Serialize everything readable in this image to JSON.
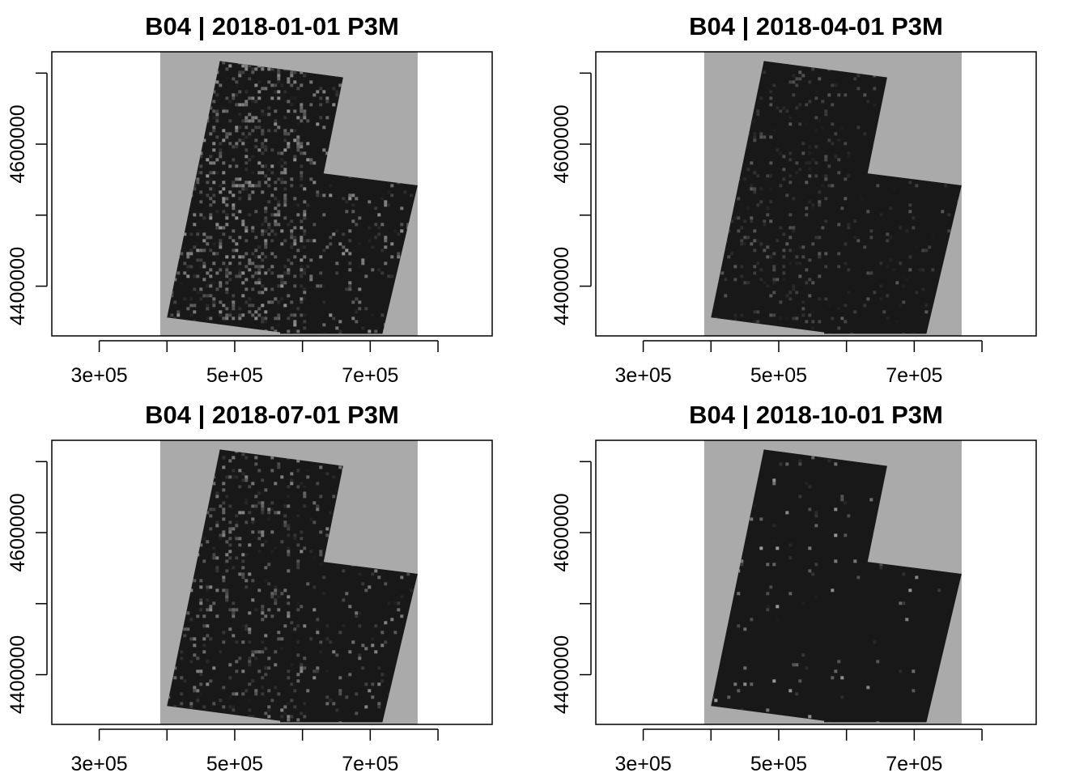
{
  "chart_data": [
    {
      "type": "heatmap",
      "title": "B04 | 2018-01-01 P3M",
      "band": "B04",
      "date": "2018-01-01",
      "period": "P3M",
      "xlim": [
        230000,
        880000
      ],
      "ylim": [
        4330000,
        4730000
      ],
      "x_ticks": [
        300000,
        400000,
        500000,
        600000,
        700000,
        800000
      ],
      "x_tick_labels": [
        "3e+05",
        "",
        "5e+05",
        "",
        "7e+05",
        ""
      ],
      "y_ticks": [
        4400000,
        4500000,
        4600000,
        4700000
      ],
      "y_tick_labels": [
        "4400000",
        "",
        "4600000",
        ""
      ],
      "cube_extent": {
        "x": [
          390000,
          770000
        ],
        "y": [
          4330000,
          4730000
        ]
      },
      "colors": {
        "nodata": "#aaaaaa",
        "low": "#181818",
        "high": "#f2f2f2"
      },
      "noise_density": 0.45,
      "noise_brightness": 0.55
    },
    {
      "type": "heatmap",
      "title": "B04 | 2018-04-01 P3M",
      "band": "B04",
      "date": "2018-04-01",
      "period": "P3M",
      "xlim": [
        230000,
        880000
      ],
      "ylim": [
        4330000,
        4730000
      ],
      "x_ticks": [
        300000,
        400000,
        500000,
        600000,
        700000,
        800000
      ],
      "x_tick_labels": [
        "3e+05",
        "",
        "5e+05",
        "",
        "7e+05",
        ""
      ],
      "y_ticks": [
        4400000,
        4500000,
        4600000,
        4700000
      ],
      "y_tick_labels": [
        "4400000",
        "",
        "4600000",
        ""
      ],
      "cube_extent": {
        "x": [
          390000,
          770000
        ],
        "y": [
          4330000,
          4730000
        ]
      },
      "colors": {
        "nodata": "#aaaaaa",
        "low": "#181818",
        "high": "#f2f2f2"
      },
      "noise_density": 0.22,
      "noise_brightness": 0.3
    },
    {
      "type": "heatmap",
      "title": "B04 | 2018-07-01 P3M",
      "band": "B04",
      "date": "2018-07-01",
      "period": "P3M",
      "xlim": [
        230000,
        880000
      ],
      "ylim": [
        4330000,
        4730000
      ],
      "x_ticks": [
        300000,
        400000,
        500000,
        600000,
        700000,
        800000
      ],
      "x_tick_labels": [
        "3e+05",
        "",
        "5e+05",
        "",
        "7e+05",
        ""
      ],
      "y_ticks": [
        4400000,
        4500000,
        4600000,
        4700000
      ],
      "y_tick_labels": [
        "4400000",
        "",
        "4600000",
        ""
      ],
      "cube_extent": {
        "x": [
          390000,
          770000
        ],
        "y": [
          4330000,
          4730000
        ]
      },
      "colors": {
        "nodata": "#aaaaaa",
        "low": "#181818",
        "high": "#f2f2f2"
      },
      "noise_density": 0.28,
      "noise_brightness": 0.5
    },
    {
      "type": "heatmap",
      "title": "B04 | 2018-10-01 P3M",
      "band": "B04",
      "date": "2018-10-01",
      "period": "P3M",
      "xlim": [
        230000,
        880000
      ],
      "ylim": [
        4330000,
        4730000
      ],
      "x_ticks": [
        300000,
        400000,
        500000,
        600000,
        700000,
        800000
      ],
      "x_tick_labels": [
        "3e+05",
        "",
        "5e+05",
        "",
        "7e+05",
        ""
      ],
      "y_ticks": [
        4400000,
        4500000,
        4600000,
        4700000
      ],
      "y_tick_labels": [
        "4400000",
        "",
        "4600000",
        ""
      ],
      "cube_extent": {
        "x": [
          390000,
          770000
        ],
        "y": [
          4330000,
          4730000
        ]
      },
      "colors": {
        "nodata": "#aaaaaa",
        "low": "#181818",
        "high": "#f2f2f2"
      },
      "noise_density": 0.05,
      "noise_brightness": 0.6
    }
  ]
}
